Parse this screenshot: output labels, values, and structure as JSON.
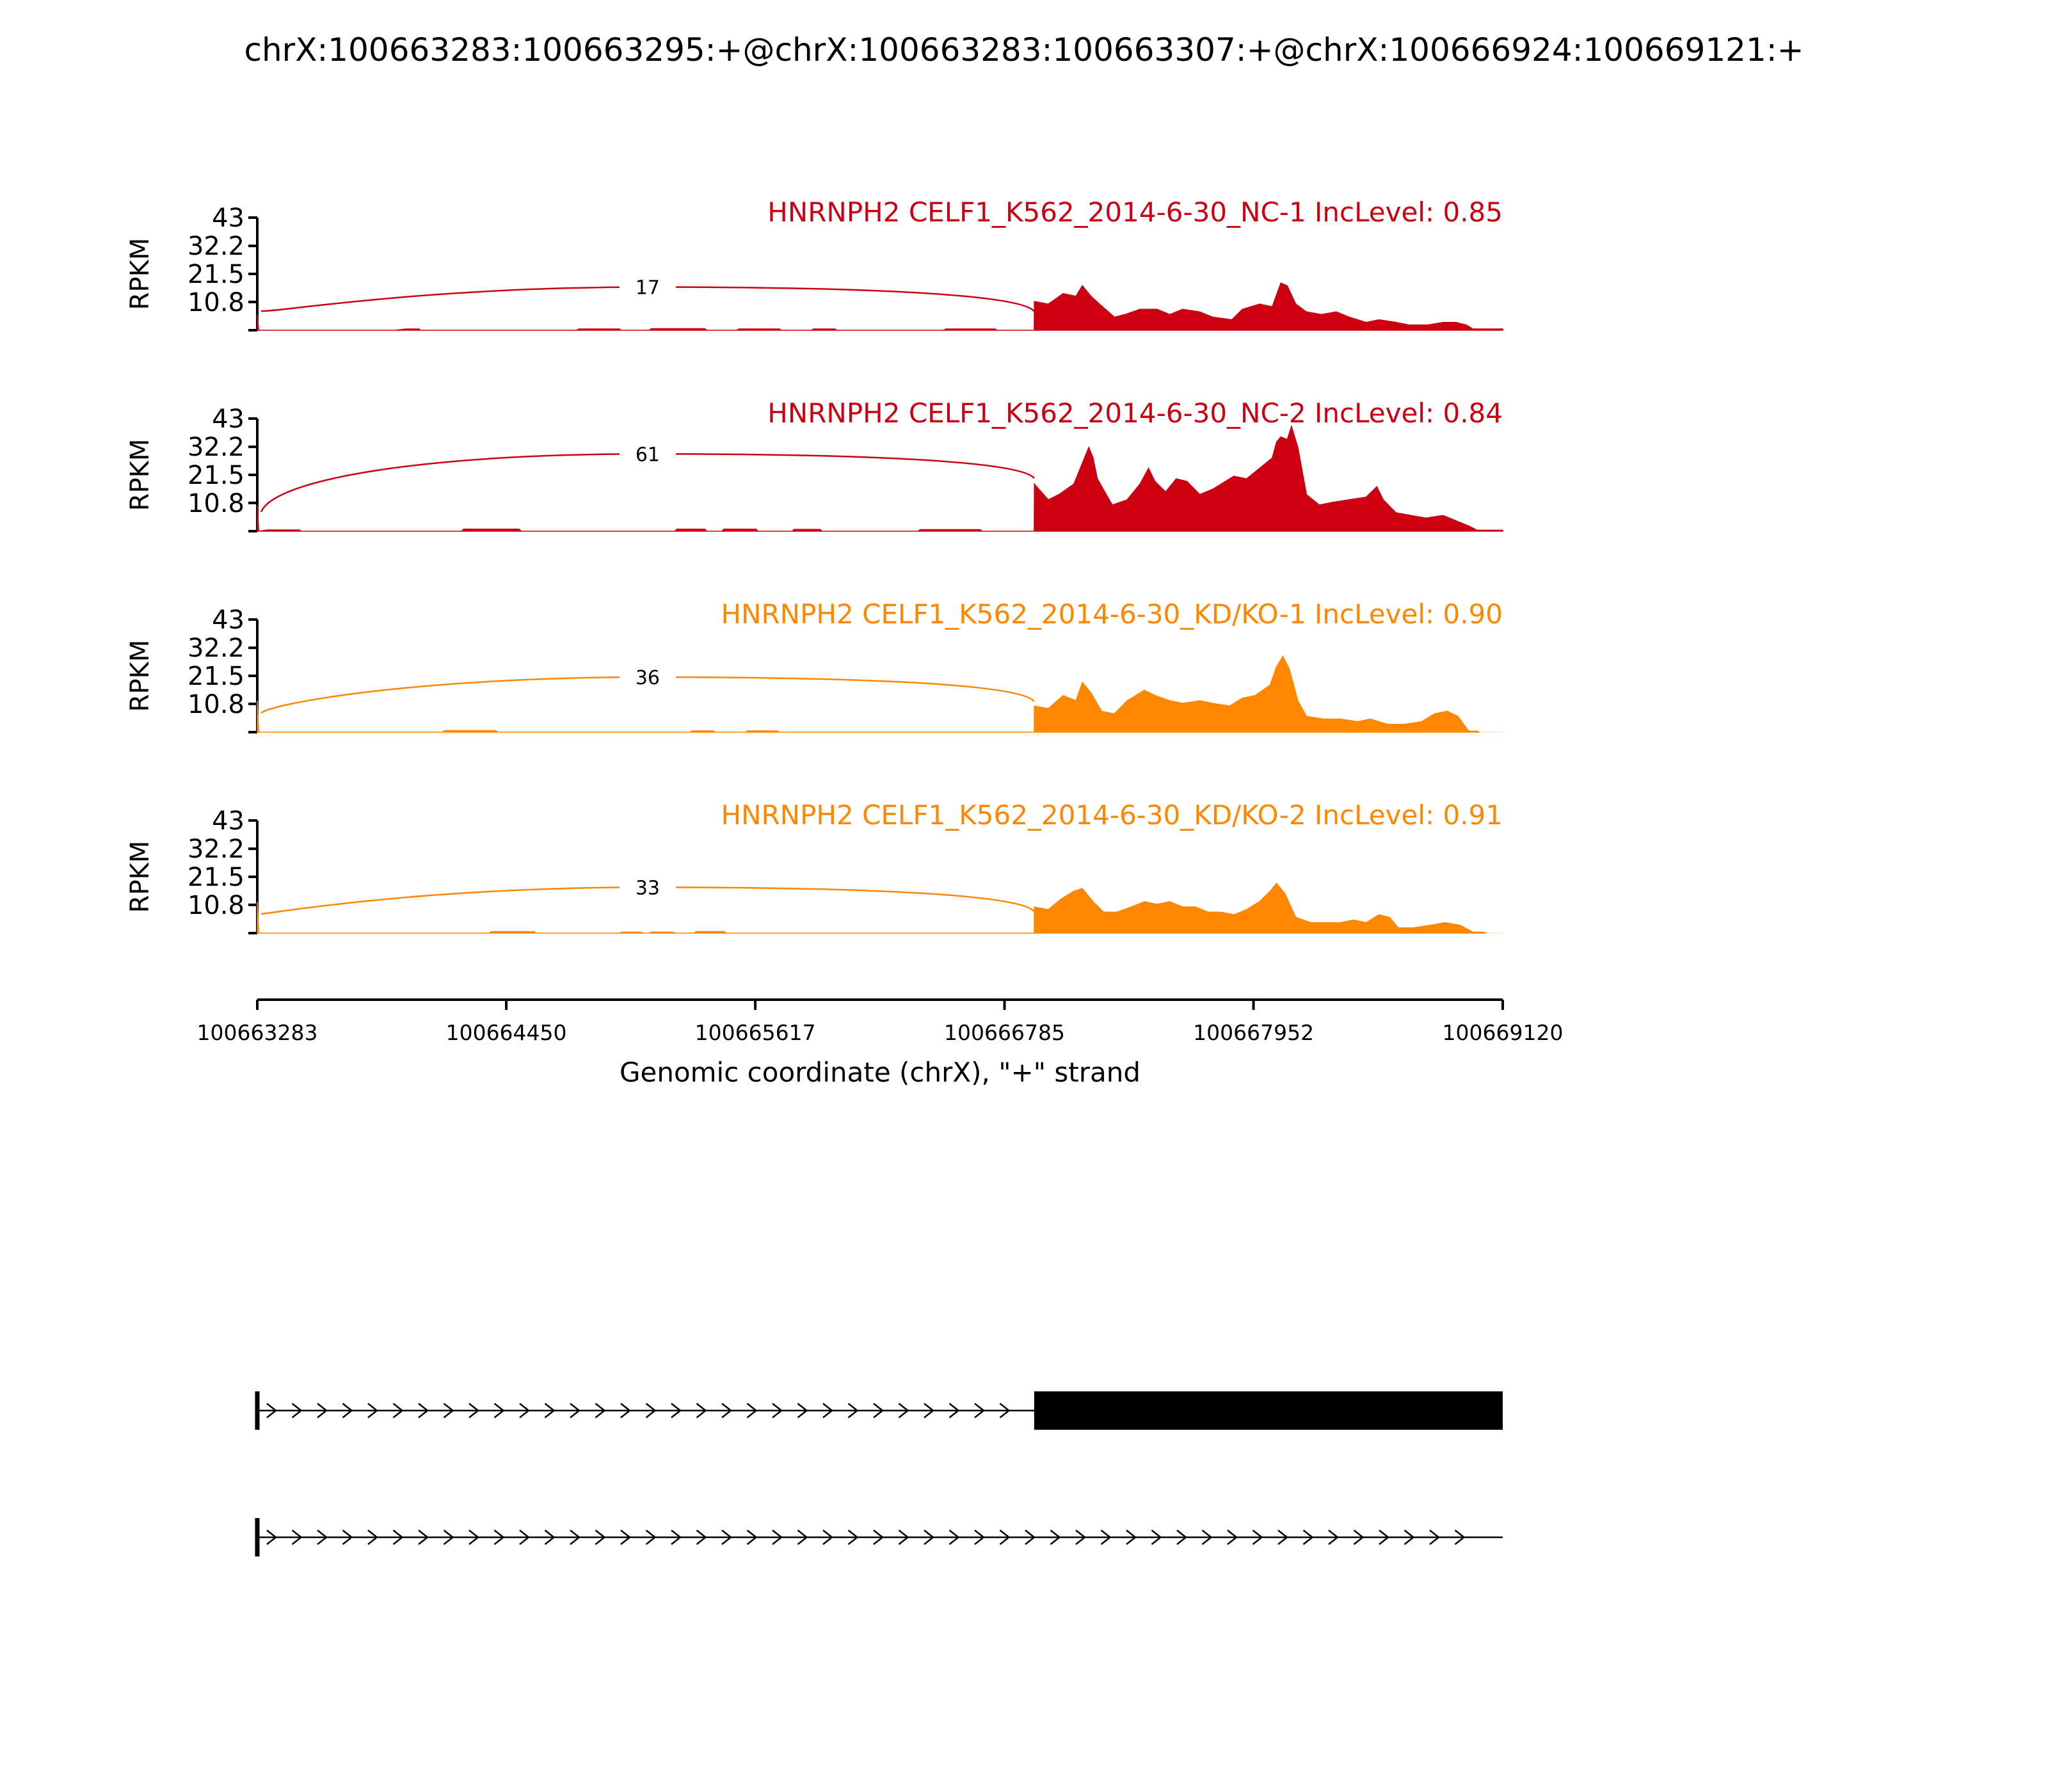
{
  "chart_data": {
    "type": "area",
    "title": "chrX:100663283:100663295:+@chrX:100663283:100663307:+@chrX:100666924:100669121:+",
    "xlabel": "Genomic coordinate (chrX), \"+\" strand",
    "ylabel": "RPKM",
    "xlim": [
      100663283,
      100669120
    ],
    "ylim": [
      0,
      43
    ],
    "x_ticks": [
      "100663283",
      "100664450",
      "100665617",
      "100666785",
      "100667952",
      "100669120"
    ],
    "y_ticks": [
      "43",
      "32.2",
      "21.5",
      "10.8"
    ],
    "grid": false,
    "exon_start": 100666924,
    "tracks": [
      {
        "name": "HNRNPH2 CELF1_K562_2014-6-30_NC-1 IncLevel: 0.85",
        "color": "#cc0011",
        "junction_count": "17",
        "junction_height": 16.5,
        "coverage": [
          [
            100663283,
            6
          ],
          [
            100663290,
            0
          ],
          [
            100663930,
            0
          ],
          [
            100663980,
            0.5
          ],
          [
            100664040,
            0.5
          ],
          [
            100664050,
            0
          ],
          [
            100664780,
            0
          ],
          [
            100664790,
            0.5
          ],
          [
            100664980,
            0.5
          ],
          [
            100664990,
            0
          ],
          [
            100665120,
            0
          ],
          [
            100665130,
            0.6
          ],
          [
            100665380,
            0.6
          ],
          [
            100665390,
            0
          ],
          [
            100665530,
            0
          ],
          [
            100665540,
            0.5
          ],
          [
            100665730,
            0.5
          ],
          [
            100665740,
            0
          ],
          [
            100665880,
            0
          ],
          [
            100665890,
            0.5
          ],
          [
            100665990,
            0.5
          ],
          [
            100666000,
            0
          ],
          [
            100666500,
            0
          ],
          [
            100666510,
            0.5
          ],
          [
            100666740,
            0.5
          ],
          [
            100666750,
            0
          ],
          [
            100666924,
            0
          ],
          [
            100666925,
            11
          ],
          [
            100666990,
            10
          ],
          [
            100667060,
            14
          ],
          [
            100667120,
            13
          ],
          [
            100667150,
            17
          ],
          [
            100667190,
            13
          ],
          [
            100667230,
            10
          ],
          [
            100667300,
            5
          ],
          [
            100667350,
            6
          ],
          [
            100667420,
            8
          ],
          [
            100667500,
            8
          ],
          [
            100667560,
            6
          ],
          [
            100667620,
            8
          ],
          [
            100667700,
            7
          ],
          [
            100667760,
            5
          ],
          [
            100667850,
            4
          ],
          [
            100667900,
            8
          ],
          [
            100667980,
            10
          ],
          [
            100668040,
            9
          ],
          [
            100668080,
            18
          ],
          [
            100668110,
            17
          ],
          [
            100668150,
            10
          ],
          [
            100668200,
            7
          ],
          [
            100668270,
            6
          ],
          [
            100668340,
            7
          ],
          [
            100668400,
            5
          ],
          [
            100668480,
            3
          ],
          [
            100668540,
            4
          ],
          [
            100668620,
            3
          ],
          [
            100668680,
            2
          ],
          [
            100668770,
            2
          ],
          [
            100668840,
            3
          ],
          [
            100668900,
            3
          ],
          [
            100668950,
            2
          ],
          [
            100668980,
            0.5
          ],
          [
            100669120,
            0.5
          ]
        ]
      },
      {
        "name": "HNRNPH2 CELF1_K562_2014-6-30_NC-2 IncLevel: 0.84",
        "color": "#cc0011",
        "junction_count": "61",
        "junction_height": 29.5,
        "coverage": [
          [
            100663283,
            10
          ],
          [
            100663290,
            0
          ],
          [
            100663330,
            0.5
          ],
          [
            100663480,
            0.5
          ],
          [
            100663490,
            0
          ],
          [
            100664240,
            0
          ],
          [
            100664250,
            0.8
          ],
          [
            100664510,
            0.8
          ],
          [
            100664520,
            0
          ],
          [
            100665240,
            0
          ],
          [
            100665250,
            0.8
          ],
          [
            100665380,
            0.8
          ],
          [
            100665390,
            0
          ],
          [
            100665460,
            0
          ],
          [
            100665470,
            0.8
          ],
          [
            100665620,
            0.8
          ],
          [
            100665630,
            0
          ],
          [
            100665790,
            0
          ],
          [
            100665800,
            0.7
          ],
          [
            100665920,
            0.7
          ],
          [
            100665930,
            0
          ],
          [
            100666380,
            0
          ],
          [
            100666390,
            0.6
          ],
          [
            100666670,
            0.6
          ],
          [
            100666680,
            0
          ],
          [
            100666924,
            0
          ],
          [
            100666925,
            18
          ],
          [
            100666990,
            12
          ],
          [
            100667040,
            14
          ],
          [
            100667110,
            18
          ],
          [
            100667150,
            26
          ],
          [
            100667180,
            32
          ],
          [
            100667200,
            28
          ],
          [
            100667220,
            20
          ],
          [
            100667290,
            10
          ],
          [
            100667360,
            12
          ],
          [
            100667420,
            18
          ],
          [
            100667460,
            24
          ],
          [
            100667490,
            19
          ],
          [
            100667540,
            15
          ],
          [
            100667590,
            20
          ],
          [
            100667640,
            19
          ],
          [
            100667700,
            14
          ],
          [
            100667760,
            16
          ],
          [
            100667800,
            18
          ],
          [
            100667860,
            21
          ],
          [
            100667920,
            20
          ],
          [
            100667980,
            24
          ],
          [
            100668040,
            28
          ],
          [
            100668060,
            34
          ],
          [
            100668080,
            36
          ],
          [
            100668110,
            35
          ],
          [
            100668130,
            40
          ],
          [
            100668160,
            32
          ],
          [
            100668200,
            14
          ],
          [
            100668260,
            10
          ],
          [
            100668320,
            11
          ],
          [
            100668400,
            12
          ],
          [
            100668480,
            13
          ],
          [
            100668530,
            17
          ],
          [
            100668560,
            12
          ],
          [
            100668620,
            7
          ],
          [
            100668690,
            6
          ],
          [
            100668760,
            5
          ],
          [
            100668840,
            6
          ],
          [
            100668900,
            4
          ],
          [
            100668960,
            2
          ],
          [
            100669000,
            0.4
          ],
          [
            100669120,
            0.4
          ]
        ]
      },
      {
        "name": "HNRNPH2 CELF1_K562_2014-6-30_KD/KO-1 IncLevel: 0.90",
        "color": "#ff8700",
        "junction_count": "36",
        "junction_height": 21,
        "coverage": [
          [
            100663283,
            12
          ],
          [
            100663290,
            0
          ],
          [
            100664150,
            0
          ],
          [
            100664160,
            0.6
          ],
          [
            100664400,
            0.6
          ],
          [
            100664410,
            0
          ],
          [
            100665310,
            0
          ],
          [
            100665320,
            0.5
          ],
          [
            100665420,
            0.5
          ],
          [
            100665430,
            0
          ],
          [
            100665570,
            0
          ],
          [
            100665580,
            0.5
          ],
          [
            100665720,
            0.5
          ],
          [
            100665730,
            0
          ],
          [
            100666924,
            0
          ],
          [
            100666925,
            10
          ],
          [
            100666990,
            9
          ],
          [
            100667060,
            14
          ],
          [
            100667120,
            12
          ],
          [
            100667150,
            19
          ],
          [
            100667190,
            15
          ],
          [
            100667240,
            8
          ],
          [
            100667300,
            7
          ],
          [
            100667360,
            12
          ],
          [
            100667440,
            16
          ],
          [
            100667490,
            14
          ],
          [
            100667560,
            12
          ],
          [
            100667620,
            11
          ],
          [
            100667700,
            12
          ],
          [
            100667760,
            11
          ],
          [
            100667840,
            10
          ],
          [
            100667900,
            13
          ],
          [
            100667960,
            14
          ],
          [
            100668030,
            18
          ],
          [
            100668060,
            25
          ],
          [
            100668090,
            29
          ],
          [
            100668120,
            24
          ],
          [
            100668160,
            12
          ],
          [
            100668200,
            6
          ],
          [
            100668280,
            5
          ],
          [
            100668360,
            5
          ],
          [
            100668440,
            4
          ],
          [
            100668500,
            5
          ],
          [
            100668580,
            3
          ],
          [
            100668660,
            3
          ],
          [
            100668740,
            4
          ],
          [
            100668800,
            7
          ],
          [
            100668860,
            8
          ],
          [
            100668910,
            6
          ],
          [
            100668960,
            0.4
          ],
          [
            100669000,
            0.4
          ],
          [
            100669010,
            0
          ]
        ]
      },
      {
        "name": "HNRNPH2 CELF1_K562_2014-6-30_KD/KO-2 IncLevel: 0.91",
        "color": "#ff8700",
        "junction_count": "33",
        "junction_height": 17.5,
        "coverage": [
          [
            100663283,
            12
          ],
          [
            100663290,
            0
          ],
          [
            100664370,
            0
          ],
          [
            100664380,
            0.6
          ],
          [
            100664580,
            0.6
          ],
          [
            100664590,
            0
          ],
          [
            100664980,
            0
          ],
          [
            100664990,
            0.4
          ],
          [
            100665080,
            0.4
          ],
          [
            100665090,
            0
          ],
          [
            100665120,
            0
          ],
          [
            100665130,
            0.4
          ],
          [
            100665230,
            0.4
          ],
          [
            100665240,
            0
          ],
          [
            100665330,
            0
          ],
          [
            100665340,
            0.6
          ],
          [
            100665470,
            0.6
          ],
          [
            100665480,
            0
          ],
          [
            100666924,
            0
          ],
          [
            100666925,
            10
          ],
          [
            100666990,
            9
          ],
          [
            100667050,
            13
          ],
          [
            100667110,
            16
          ],
          [
            100667150,
            17
          ],
          [
            100667200,
            12
          ],
          [
            100667250,
            8
          ],
          [
            100667310,
            8
          ],
          [
            100667380,
            10
          ],
          [
            100667440,
            12
          ],
          [
            100667500,
            11
          ],
          [
            100667560,
            12
          ],
          [
            100667620,
            10
          ],
          [
            100667680,
            10
          ],
          [
            100667740,
            8
          ],
          [
            100667800,
            8
          ],
          [
            100667860,
            7
          ],
          [
            100667920,
            9
          ],
          [
            100667980,
            12
          ],
          [
            100668030,
            16
          ],
          [
            100668060,
            19
          ],
          [
            100668100,
            15
          ],
          [
            100668150,
            6
          ],
          [
            100668220,
            4
          ],
          [
            100668290,
            4
          ],
          [
            100668360,
            4
          ],
          [
            100668420,
            5
          ],
          [
            100668480,
            4
          ],
          [
            100668540,
            7
          ],
          [
            100668590,
            6
          ],
          [
            100668630,
            2
          ],
          [
            100668700,
            2
          ],
          [
            100668780,
            3
          ],
          [
            100668850,
            4
          ],
          [
            100668920,
            3
          ],
          [
            100668980,
            0.4
          ],
          [
            100669030,
            0.4
          ],
          [
            100669040,
            0
          ]
        ]
      }
    ],
    "transcripts": [
      {
        "start": 100663283,
        "end": 100669120,
        "exon_start": 100666924,
        "exon_end": 100669120
      },
      {
        "start": 100663283,
        "end": 100669120
      }
    ]
  }
}
